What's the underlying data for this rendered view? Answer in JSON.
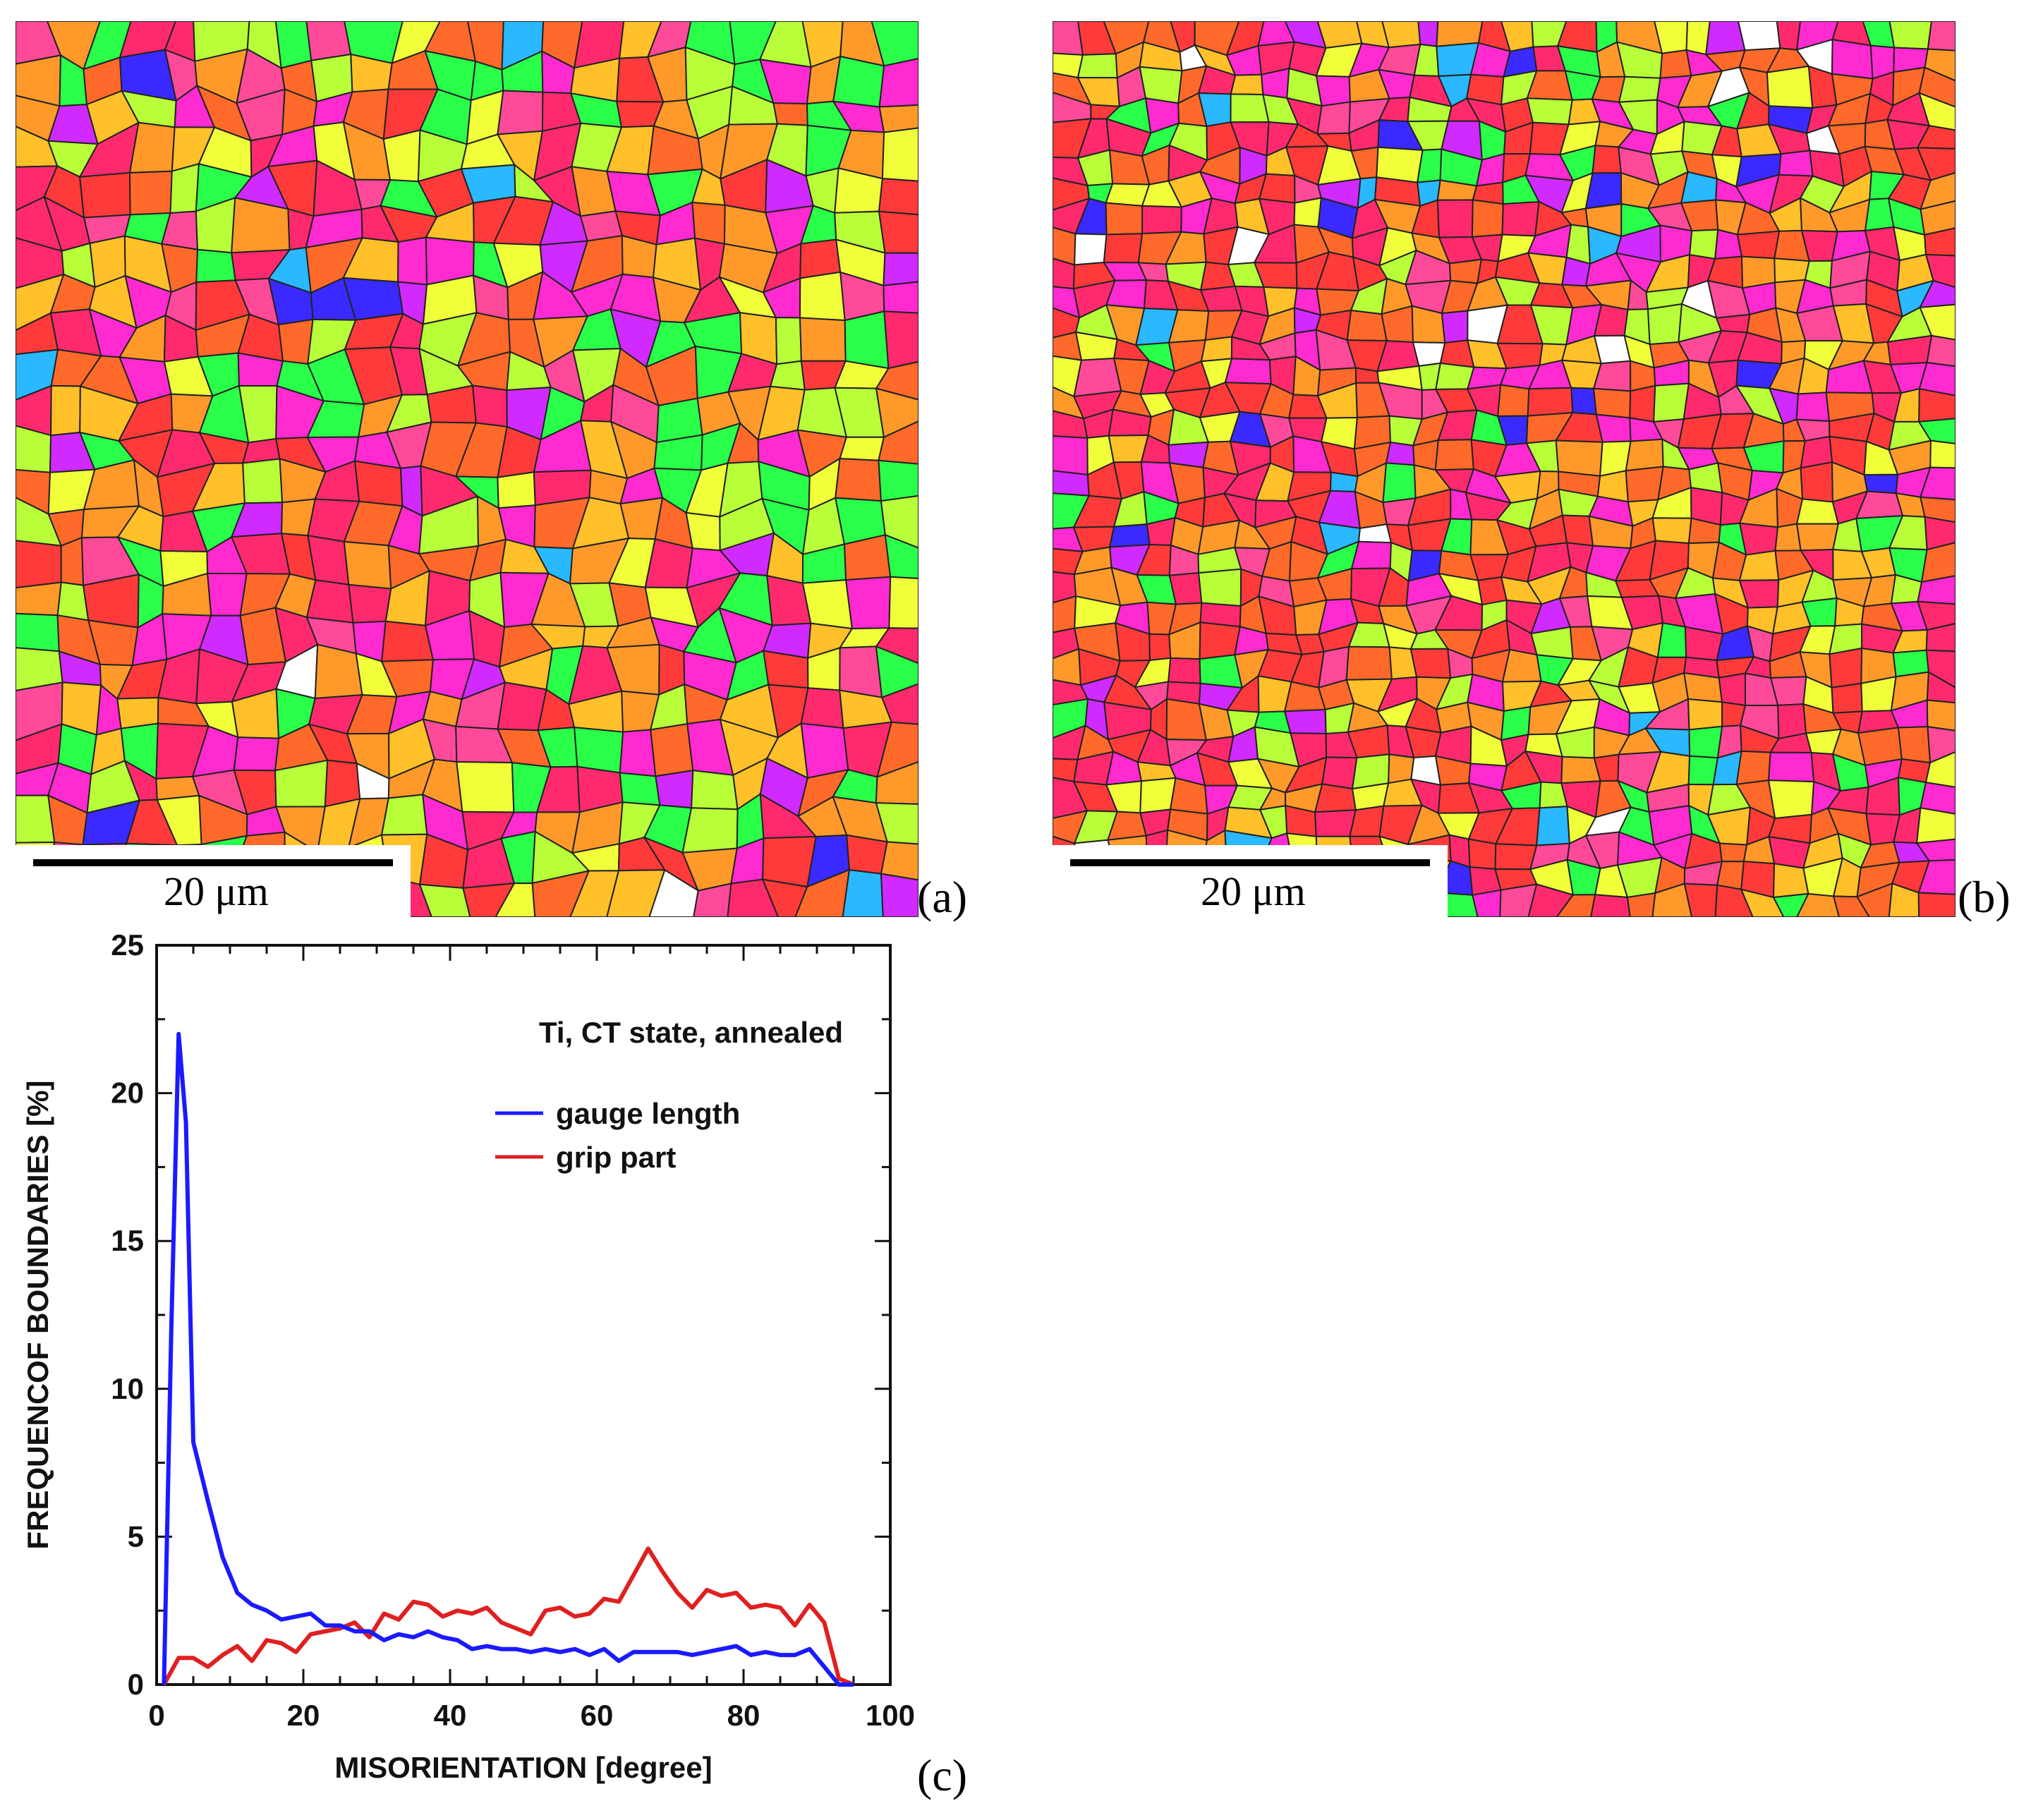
{
  "panels": {
    "a": {
      "label": "(a)",
      "scale_bar": "20 μm"
    },
    "b": {
      "label": "(b)",
      "scale_bar": "20 μm"
    },
    "c": {
      "label": "(c)"
    }
  },
  "map_palette": [
    "#ff2a6e",
    "#ff3a3a",
    "#ff6a2a",
    "#ff9a2a",
    "#ffc02a",
    "#f0ff3a",
    "#b8ff3a",
    "#2aff4a",
    "#ff2ad0",
    "#d02aff",
    "#3a2aff",
    "#2ab8ff",
    "#ff4a9a",
    "#ffffff"
  ],
  "chart_data": {
    "type": "line",
    "title": "",
    "annotation": "Ti, CT state, annealed",
    "xlabel": "MISORIENTATION [degree]",
    "ylabel": "FREQUENCOF BOUNDARIES [%]",
    "xlim": [
      0,
      100
    ],
    "ylim": [
      0,
      25
    ],
    "xticks": [
      0,
      20,
      40,
      60,
      80,
      100
    ],
    "yticks": [
      0,
      5,
      10,
      15,
      20,
      25
    ],
    "legend_position": "upper-right",
    "series": [
      {
        "name": "gauge length",
        "color": "#1a1aff",
        "x": [
          1,
          2,
          3,
          4,
          5,
          7,
          9,
          11,
          13,
          15,
          17,
          19,
          21,
          23,
          25,
          27,
          29,
          31,
          33,
          35,
          37,
          39,
          41,
          43,
          45,
          47,
          49,
          51,
          53,
          55,
          57,
          59,
          61,
          63,
          65,
          67,
          69,
          71,
          73,
          75,
          77,
          79,
          81,
          83,
          85,
          87,
          89,
          91,
          93,
          95
        ],
        "values": [
          0,
          12,
          22,
          19,
          8.2,
          6.2,
          4.3,
          3.1,
          2.7,
          2.5,
          2.2,
          2.3,
          2.4,
          2.0,
          2.0,
          1.8,
          1.8,
          1.5,
          1.7,
          1.6,
          1.8,
          1.6,
          1.5,
          1.2,
          1.3,
          1.2,
          1.2,
          1.1,
          1.2,
          1.1,
          1.2,
          1.0,
          1.2,
          0.8,
          1.1,
          1.1,
          1.1,
          1.1,
          1.0,
          1.1,
          1.2,
          1.3,
          1.0,
          1.1,
          1.0,
          1.0,
          1.2,
          0.6,
          0,
          0
        ]
      },
      {
        "name": "grip part",
        "color": "#e02020",
        "x": [
          1,
          3,
          5,
          7,
          9,
          11,
          13,
          15,
          17,
          19,
          21,
          23,
          25,
          27,
          29,
          31,
          33,
          35,
          37,
          39,
          41,
          43,
          45,
          47,
          49,
          51,
          53,
          55,
          57,
          59,
          61,
          63,
          65,
          67,
          69,
          71,
          73,
          75,
          77,
          79,
          81,
          83,
          85,
          87,
          89,
          91,
          93,
          95
        ],
        "values": [
          0,
          0.9,
          0.9,
          0.6,
          1.0,
          1.3,
          0.8,
          1.5,
          1.4,
          1.1,
          1.7,
          1.8,
          1.9,
          2.1,
          1.6,
          2.4,
          2.2,
          2.8,
          2.7,
          2.3,
          2.5,
          2.4,
          2.6,
          2.1,
          1.9,
          1.7,
          2.5,
          2.6,
          2.3,
          2.4,
          2.9,
          2.8,
          3.7,
          4.6,
          3.8,
          3.1,
          2.6,
          3.2,
          3.0,
          3.1,
          2.6,
          2.7,
          2.6,
          2.0,
          2.7,
          2.1,
          0.2,
          0
        ]
      }
    ]
  }
}
